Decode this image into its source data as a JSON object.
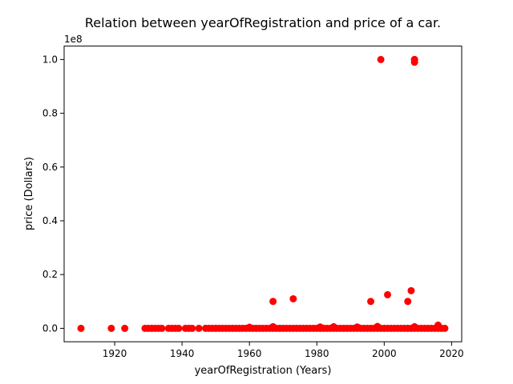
{
  "chart_data": {
    "type": "scatter",
    "title": "Relation between yearOfRegistration and price of a car.",
    "xlabel": "yearOfRegistration (Years)",
    "ylabel": "price (Dollars)",
    "y_offset_label": "1e8",
    "xlim": [
      1905,
      2023
    ],
    "ylim": [
      -5000000,
      105000000
    ],
    "x_ticks": [
      1920,
      1940,
      1960,
      1980,
      2000,
      2020
    ],
    "x_tick_labels": [
      "1920",
      "1940",
      "1960",
      "1980",
      "2000",
      "2020"
    ],
    "y_ticks": [
      0,
      20000000,
      40000000,
      60000000,
      80000000,
      100000000
    ],
    "y_tick_labels": [
      "0.0",
      "0.2",
      "0.4",
      "0.6",
      "0.8",
      "1.0"
    ],
    "marker_color": "#ff0000",
    "grid": false,
    "points": {
      "x": [
        1910,
        1919,
        1923,
        1929,
        1930,
        1931,
        1932,
        1933,
        1934,
        1936,
        1937,
        1938,
        1939,
        1941,
        1942,
        1943,
        1945,
        1947,
        1948,
        1949,
        1950,
        1951,
        1952,
        1953,
        1954,
        1955,
        1956,
        1957,
        1958,
        1959,
        1960,
        1961,
        1962,
        1963,
        1964,
        1965,
        1966,
        1967,
        1968,
        1969,
        1970,
        1971,
        1972,
        1973,
        1974,
        1975,
        1976,
        1977,
        1978,
        1979,
        1980,
        1981,
        1982,
        1983,
        1984,
        1985,
        1986,
        1987,
        1988,
        1989,
        1990,
        1991,
        1992,
        1993,
        1994,
        1995,
        1996,
        1997,
        1998,
        1999,
        2000,
        2001,
        2002,
        2003,
        2004,
        2005,
        2006,
        2007,
        2008,
        2009,
        2010,
        2011,
        2012,
        2013,
        2014,
        2015,
        2016,
        2017,
        2018,
        1967,
        1973,
        1996,
        1999,
        2001,
        2007,
        2008,
        2009,
        2009,
        2009,
        1960,
        1967,
        1981,
        1985,
        1992,
        1998,
        2009,
        2016
      ],
      "y": [
        0,
        0,
        0,
        0,
        0,
        0,
        0,
        0,
        0,
        0,
        0,
        0,
        0,
        0,
        0,
        0,
        0,
        0,
        0,
        0,
        0,
        0,
        0,
        0,
        0,
        0,
        0,
        0,
        0,
        0,
        0,
        0,
        0,
        0,
        0,
        0,
        0,
        0,
        0,
        0,
        0,
        0,
        0,
        0,
        0,
        0,
        0,
        0,
        0,
        0,
        0,
        0,
        0,
        0,
        0,
        0,
        0,
        0,
        0,
        0,
        0,
        0,
        0,
        0,
        0,
        0,
        0,
        0,
        0,
        0,
        0,
        0,
        0,
        0,
        0,
        0,
        0,
        0,
        0,
        0,
        0,
        0,
        0,
        0,
        0,
        0,
        0,
        0,
        0,
        10000000,
        11000000,
        10000000,
        100000000,
        12500000,
        10000000,
        14000000,
        100000000,
        99000000,
        99999999,
        400000,
        600000,
        500000,
        600000,
        500000,
        700000,
        600000,
        1200000
      ]
    }
  }
}
